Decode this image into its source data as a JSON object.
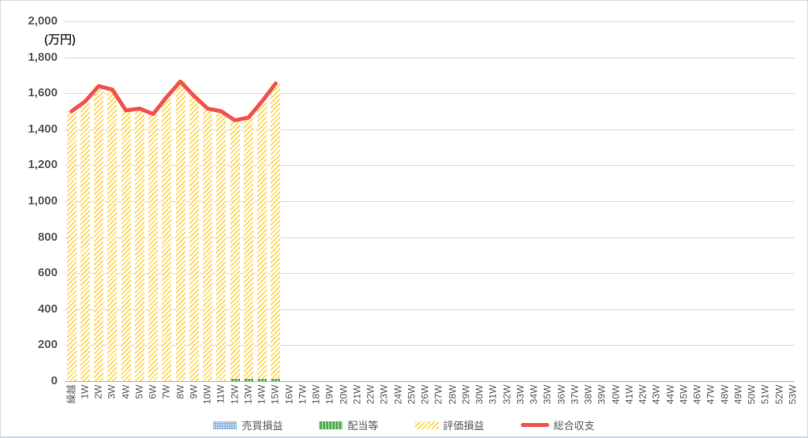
{
  "unit_label": "(万円)",
  "chart_data": {
    "type": "combo",
    "bar_mode": "stacked",
    "title": "",
    "xlabel": "",
    "ylabel": "(万円)",
    "ylim": [
      0,
      2000
    ],
    "y_tick_step": 200,
    "y_tick_labels": [
      "2,000",
      "1,800",
      "1,600",
      "1,400",
      "1,200",
      "1,000",
      "800",
      "600",
      "400",
      "200",
      "0"
    ],
    "grid": true,
    "legend_position": "bottom",
    "categories": [
      "繰越",
      "1W",
      "2W",
      "3W",
      "4W",
      "5W",
      "6W",
      "7W",
      "8W",
      "9W",
      "10W",
      "11W",
      "12W",
      "13W",
      "14W",
      "15W",
      "16W",
      "17W",
      "18W",
      "19W",
      "20W",
      "21W",
      "22W",
      "23W",
      "24W",
      "25W",
      "26W",
      "27W",
      "28W",
      "29W",
      "30W",
      "31W",
      "32W",
      "33W",
      "34W",
      "35W",
      "36W",
      "37W",
      "38W",
      "39W",
      "40W",
      "41W",
      "42W",
      "43W",
      "44W",
      "45W",
      "46W",
      "47W",
      "48W",
      "49W",
      "50W",
      "51W",
      "52W",
      "53W"
    ],
    "data_note": "series values exist only for 繰越 through 15W; later weeks have no data",
    "series": [
      {
        "name": "売買損益",
        "key": "trading-pnl",
        "type": "bar",
        "color": "#8FB3DC",
        "values": [
          0,
          0,
          0,
          0,
          0,
          0,
          0,
          0,
          0,
          0,
          0,
          0,
          0,
          0,
          0,
          0
        ]
      },
      {
        "name": "配当等",
        "key": "dividends",
        "type": "bar",
        "color": "#4FA84D",
        "values": [
          0,
          0,
          0,
          0,
          0,
          0,
          0,
          0,
          0,
          0,
          0,
          0,
          15,
          15,
          15,
          15
        ]
      },
      {
        "name": "評価損益",
        "key": "valuation-pnl",
        "type": "bar",
        "color": "#FFD966",
        "values": [
          1500,
          1555,
          1640,
          1620,
          1505,
          1515,
          1485,
          1580,
          1665,
          1585,
          1515,
          1500,
          1435,
          1450,
          1540,
          1640
        ]
      },
      {
        "name": "総合収支",
        "key": "total-balance",
        "type": "line",
        "color": "#F0544F",
        "values": [
          1500,
          1555,
          1640,
          1620,
          1505,
          1515,
          1485,
          1580,
          1665,
          1585,
          1515,
          1500,
          1450,
          1465,
          1555,
          1655
        ]
      }
    ]
  }
}
